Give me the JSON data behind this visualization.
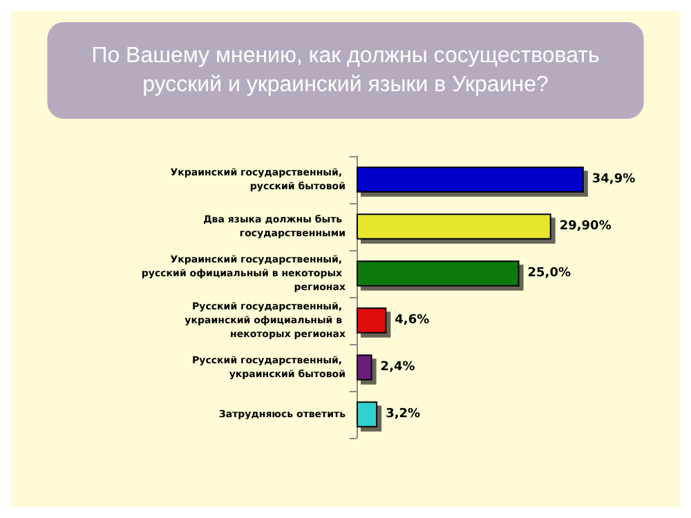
{
  "chart_data": {
    "type": "bar",
    "orientation": "horizontal",
    "title": "По Вашему мнению, как должны сосуществовать\nрусский и украинский языки в Украине?",
    "categories": [
      "Украинский государственный, русский бытовой",
      "Два языка должны быть государственными",
      "Украинский государственный, русский официальный в некоторых регионах",
      "Русский государственный, украинский официальный в некоторых регионах",
      "Русский государственный, украинский бытовой",
      "Затрудняюсь ответить"
    ],
    "values": [
      34.9,
      29.9,
      25.0,
      4.6,
      2.4,
      3.2
    ],
    "colors": [
      "#0000cc",
      "#e6e62e",
      "#0a7a0a",
      "#e01010",
      "#6a1a7a",
      "#30d0d0"
    ],
    "value_labels": [
      "34,9%",
      "29,90%",
      "25,0%",
      "4,6%",
      "2,4%",
      "3,2%"
    ]
  }
}
